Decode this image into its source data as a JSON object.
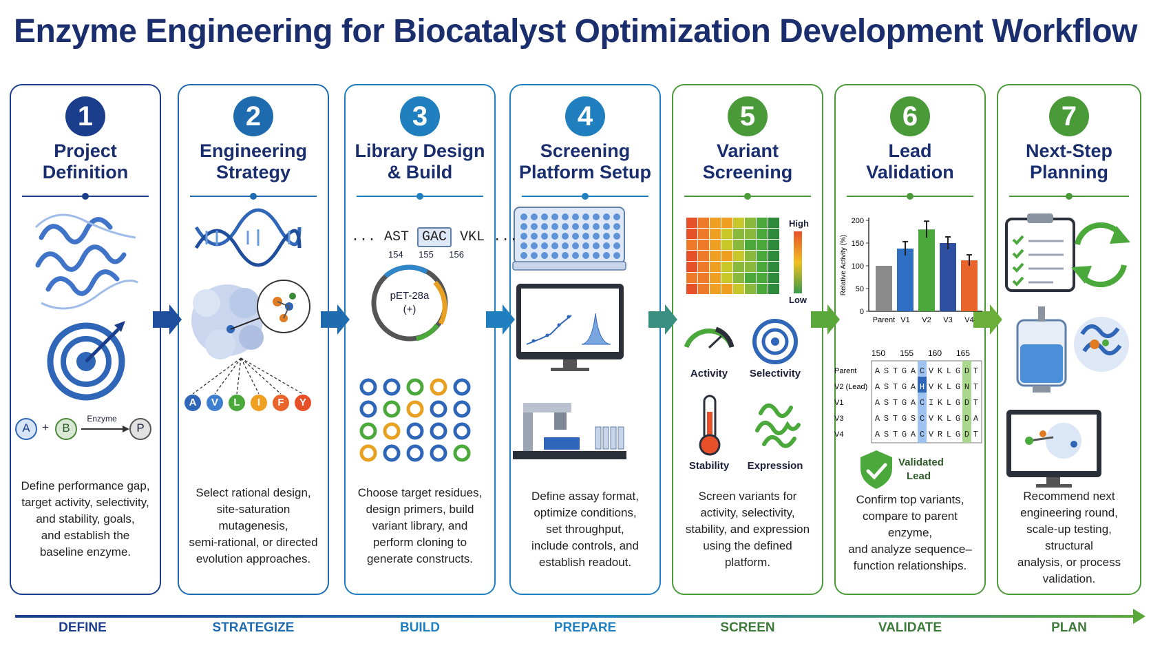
{
  "title": "Enzyme Engineering for Biocatalyst Optimization Development Workflow",
  "steps": [
    {
      "number": "1",
      "title": [
        "Project",
        "Definition"
      ],
      "color": "#1a3e8c",
      "desc": [
        "Define performance gap,",
        "target activity, selectivity,",
        "and stability, goals,",
        "and establish the",
        "baseline enzyme."
      ]
    },
    {
      "number": "2",
      "title": [
        "Engineering",
        "Strategy"
      ],
      "color": "#1f6bb0",
      "desc": [
        "Select rational design,",
        "site-saturation mutagenesis,",
        "semi-rational, or directed",
        "evolution approaches."
      ]
    },
    {
      "number": "3",
      "title": [
        "Library Design",
        "& Build"
      ],
      "color": "#1f7fbf",
      "desc": [
        "Choose target residues,",
        "design primers, build",
        "variant library, and",
        "perform cloning to",
        "generate constructs."
      ]
    },
    {
      "number": "4",
      "title": [
        "Screening",
        "Platform Setup"
      ],
      "color": "#1f7fbf",
      "desc": [
        "Define assay format,",
        "optimize conditions,",
        "set throughput,",
        "include controls, and",
        "establish readout."
      ]
    },
    {
      "number": "5",
      "title": [
        "Variant",
        "Screening"
      ],
      "color": "#4a9a3a",
      "desc": [
        "Screen variants for",
        "activity, selectivity,",
        "stability, and expression",
        "using the defined",
        "platform."
      ]
    },
    {
      "number": "6",
      "title": [
        "Lead",
        "Validation"
      ],
      "color": "#4a9a3a",
      "desc": [
        "Confirm top variants,",
        "compare to parent enzyme,",
        "and analyze sequence–",
        "function relationships."
      ]
    },
    {
      "number": "7",
      "title": [
        "Next-Step",
        "Planning"
      ],
      "color": "#4a9a3a",
      "desc": [
        "Recommend next",
        "engineering round,",
        "scale-up testing, structural",
        "analysis, or process",
        "validation."
      ]
    }
  ],
  "stages": [
    "DEFINE",
    "STRATEGIZE",
    "BUILD",
    "PREPARE",
    "SCREEN",
    "VALIDATE",
    "PLAN"
  ],
  "stage_colors": [
    "#1a3e8c",
    "#1f6bb0",
    "#1f7fbf",
    "#1f7fbf",
    "#3d7a3a",
    "#3d7a3a",
    "#3d7a3a"
  ],
  "p1": {
    "a": "A",
    "b": "B",
    "plus": "+",
    "p": "P",
    "enzyme": "Enzyme"
  },
  "p2": {
    "residues": [
      "A",
      "V",
      "L",
      "I",
      "F",
      "Y"
    ]
  },
  "p3": {
    "seq_left": "... AST",
    "codon": "GAC",
    "seq_right": "VKL ...",
    "pos": [
      "154",
      "155",
      "156"
    ],
    "plasmid": [
      "pET-28a",
      "(+)"
    ]
  },
  "p5": {
    "high": "High",
    "low": "Low",
    "metrics": [
      "Activity",
      "Selectivity",
      "Stability",
      "Expression"
    ]
  },
  "p6": {
    "chart_data": {
      "type": "bar",
      "categories": [
        "Parent",
        "V1",
        "V2",
        "V3",
        "V4"
      ],
      "values": [
        100,
        138,
        180,
        150,
        112
      ],
      "ylabel": "Relative Activity (%)",
      "ylim": [
        0,
        200
      ],
      "yticks": [
        "200",
        "150",
        "100",
        "50",
        "0"
      ],
      "colors": [
        "#8a8a8a",
        "#2e6fc4",
        "#4ba83a",
        "#2f4fa0",
        "#e8642a"
      ]
    },
    "positions": [
      "150",
      "155",
      "160",
      "165"
    ],
    "rows": [
      {
        "label": "Parent",
        "seq": "ASTGACVKLGDT"
      },
      {
        "label": "V2 (Lead)",
        "seq": "ASTGAHVKLGNT"
      },
      {
        "label": "V1",
        "seq": "ASTGACIKLGDT"
      },
      {
        "label": "V3",
        "seq": "ASTGSCVKLGDA"
      },
      {
        "label": "V4",
        "seq": "ASTGACVRLGDT"
      }
    ],
    "validated": [
      "Validated",
      "Lead"
    ]
  }
}
